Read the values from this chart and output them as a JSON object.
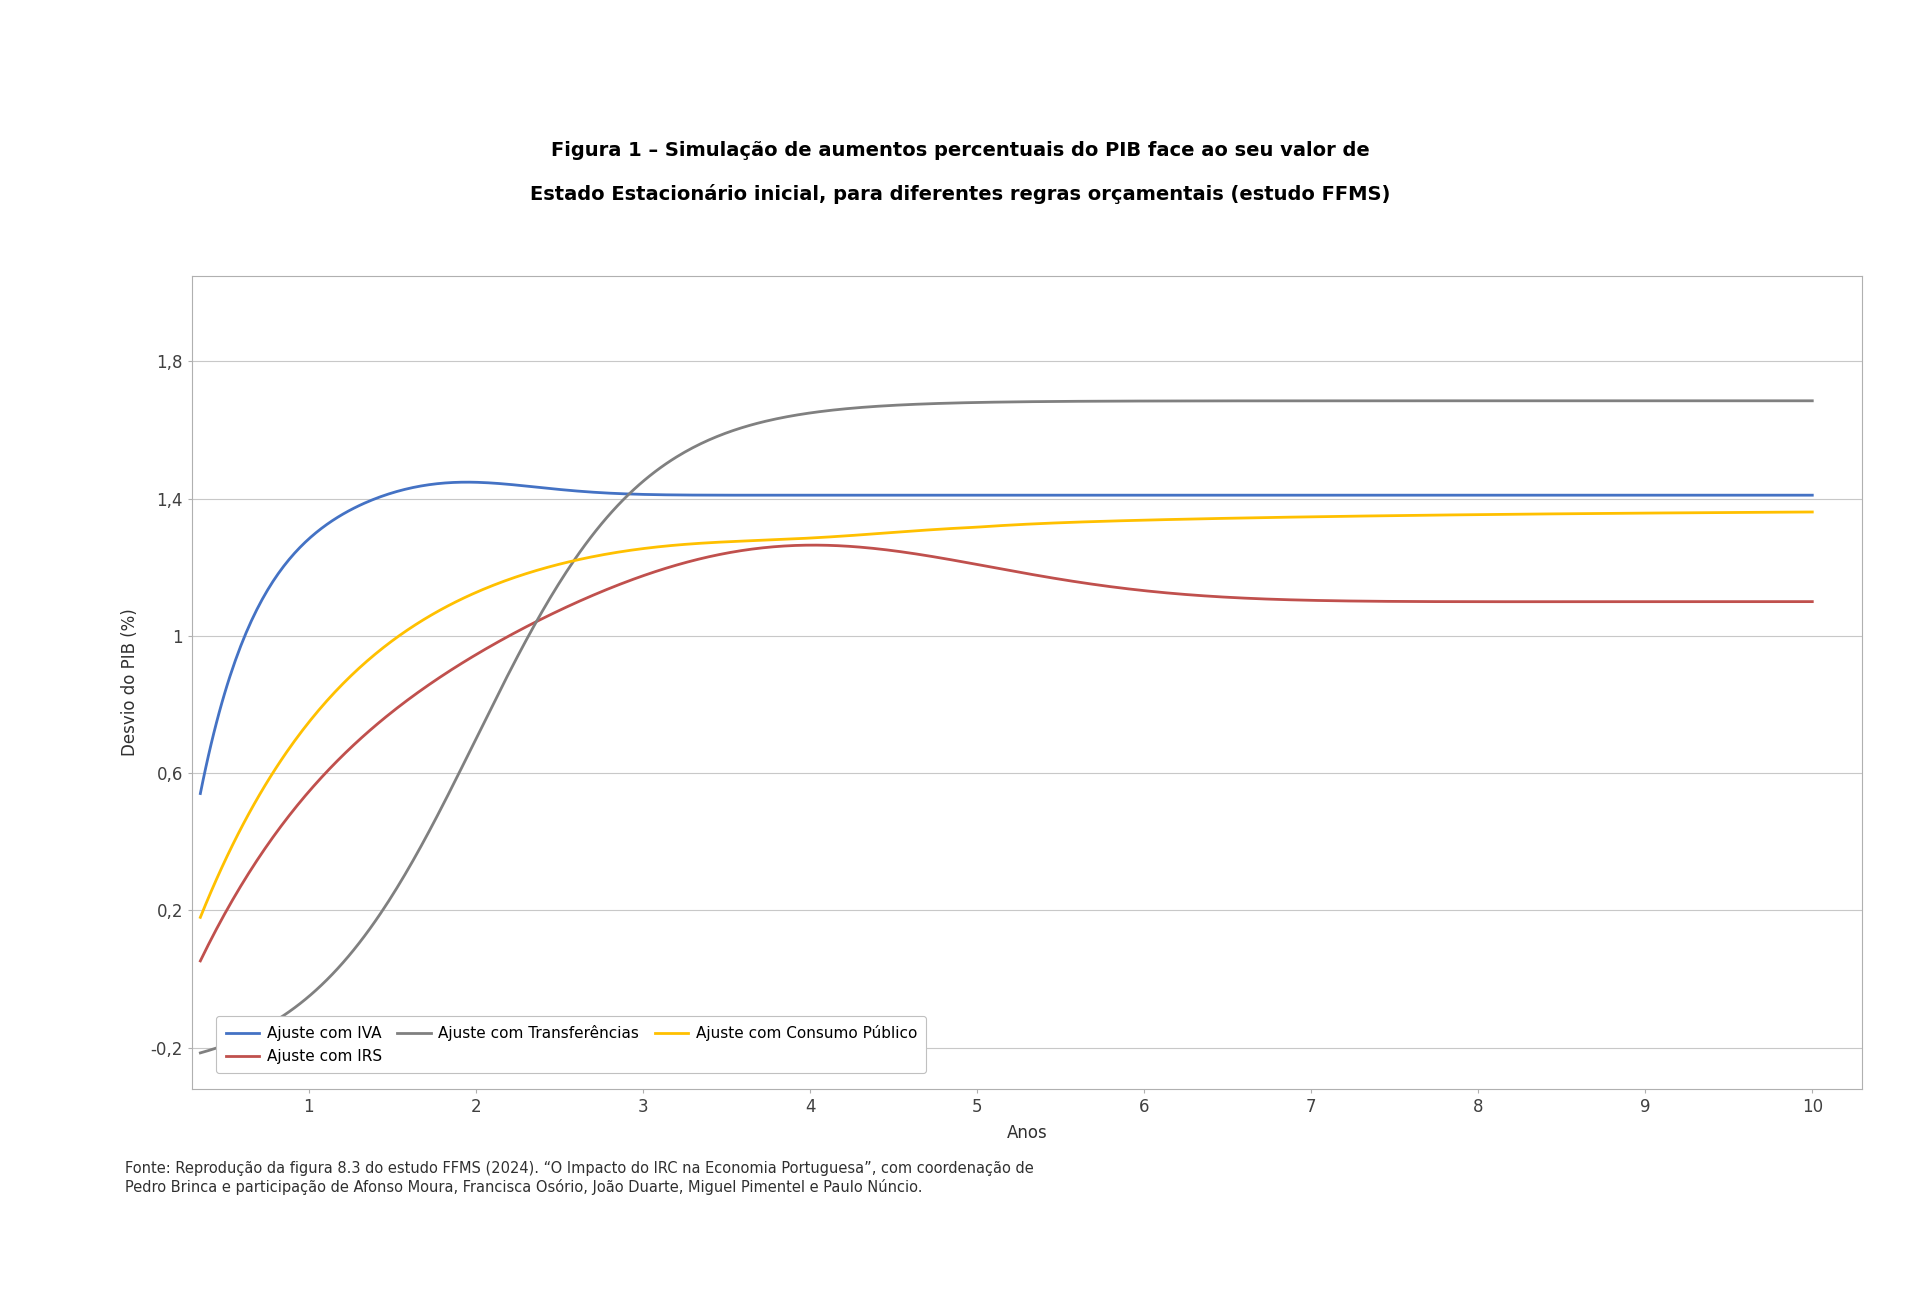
{
  "title_line1": "Figura 1 – Simulação de aumentos percentuais do PIB face ao seu valor de",
  "title_line2": "Estado Estacionário inicial, para diferentes regras orçamentais (estudo FFMS)",
  "xlabel": "Anos",
  "ylabel": "Desvio do PIB (%)",
  "xlim": [
    0.3,
    10.3
  ],
  "ylim": [
    -0.32,
    2.05
  ],
  "yticks": [
    -0.2,
    0.2,
    0.6,
    1.0,
    1.4,
    1.8
  ],
  "ytick_labels": [
    "-0,2",
    "0,2",
    "0,6",
    "1",
    "1,4",
    "1,8"
  ],
  "xticks": [
    1,
    2,
    3,
    4,
    5,
    6,
    7,
    8,
    9,
    10
  ],
  "colors": {
    "iva": "#4472C4",
    "irs": "#C0504D",
    "transferencias": "#808080",
    "consumo": "#FFC000"
  },
  "legend": [
    "Ajuste com IVA",
    "Ajuste com IRS",
    "Ajuste com Transferências",
    "Ajuste com Consumo Público"
  ],
  "footnote": "Fonte: Reprodução da figura 8.3 do estudo FFMS (2024). “O Impacto do IRC na Economia Portuguesa”, com coordenação de\nPedro Brinca e participação de Afonso Moura, Francisca Osório, João Duarte, Miguel Pimentel e Paulo Núncio.",
  "background_color": "#FFFFFF",
  "plot_bg_color": "#FFFFFF",
  "grid_color": "#C8C8C8"
}
